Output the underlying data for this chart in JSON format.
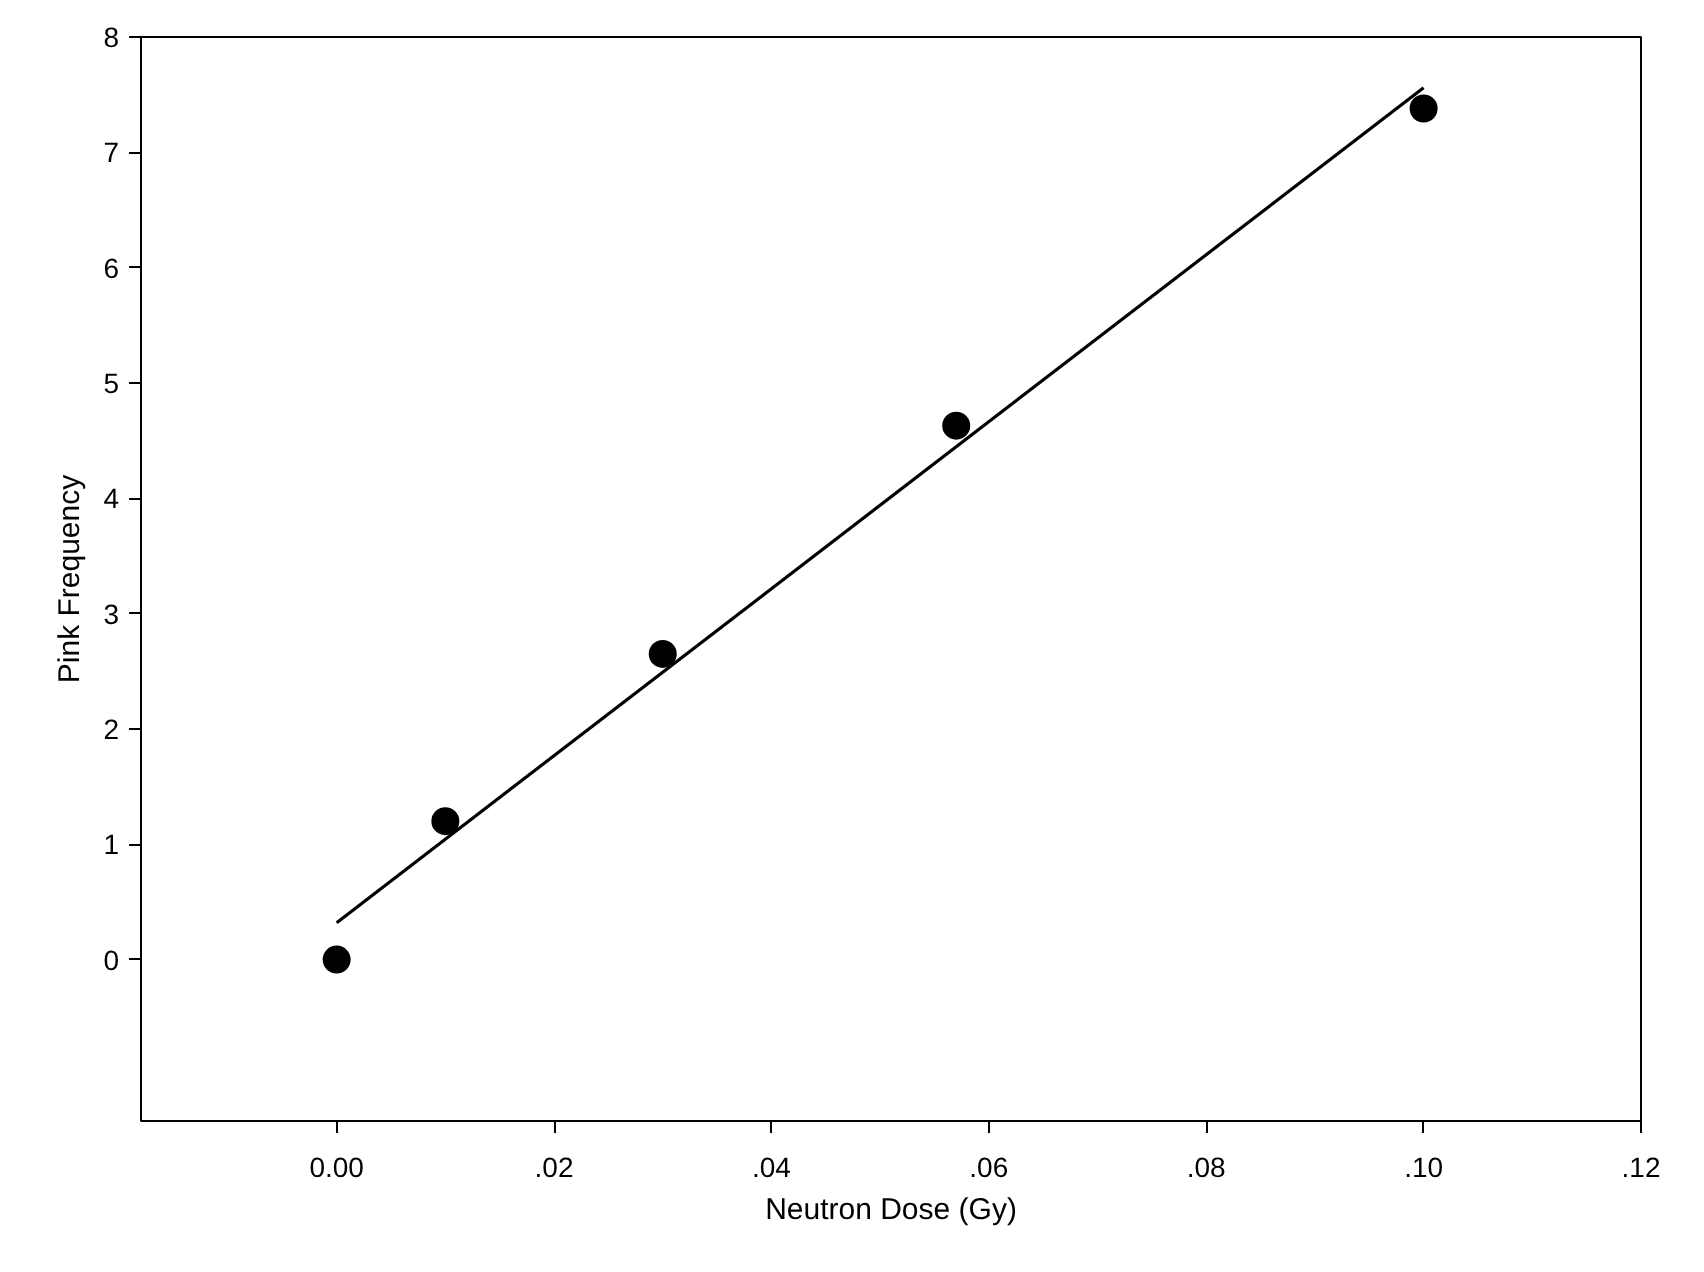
{
  "chart_data": {
    "type": "scatter",
    "xlabel": "Neutron Dose (Gy)",
    "ylabel": "Pink Frequency",
    "series": [
      {
        "color": "#000000",
        "marker": "circle",
        "x": [
          0.0,
          0.01,
          0.03,
          0.057,
          0.1
        ],
        "values": [
          0.0,
          1.2,
          2.65,
          4.63,
          7.38
        ]
      },
      {
        "type": "line",
        "color": "#000000",
        "marker": "none",
        "line_style": "solid",
        "x": [
          0.0,
          0.1
        ],
        "values": [
          0.32,
          7.56
        ]
      }
    ],
    "xlim": [
      -0.018,
      0.12
    ],
    "ylim": [
      -1.4,
      8
    ],
    "xticks": [
      {
        "value": 0.0,
        "label": "0.00"
      },
      {
        "value": 0.02,
        "label": ".02"
      },
      {
        "value": 0.04,
        "label": ".04"
      },
      {
        "value": 0.06,
        "label": ".06"
      },
      {
        "value": 0.08,
        "label": ".08"
      },
      {
        "value": 0.1,
        "label": ".10"
      },
      {
        "value": 0.12,
        "label": ".12"
      }
    ],
    "yticks": [
      0,
      1,
      2,
      3,
      4,
      5,
      6,
      7,
      8
    ],
    "grid": false
  }
}
